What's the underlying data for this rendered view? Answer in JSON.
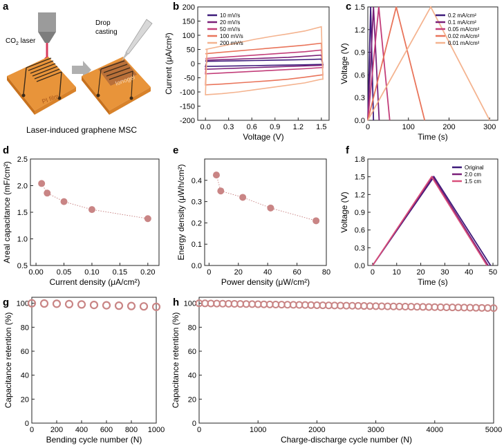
{
  "panel_a": {
    "letter": "a",
    "co2_main": "CO",
    "co2_sub": "2",
    "co2_tail": " laser",
    "drop": "Drop",
    "casting": "casting",
    "film": "PI film",
    "gel": "Ionogel",
    "caption": "Laser-induced graphene MSC"
  },
  "chart_data": [
    {
      "panel": "b",
      "type": "line",
      "xlabel": "Voltage (V)",
      "ylabel": "Current (μA/cm²)",
      "xlim": [
        -0.1,
        1.6
      ],
      "ylim": [
        -200,
        200
      ],
      "xticks": [
        "0.0",
        "0.3",
        "0.6",
        "0.9",
        "1.2",
        "1.5"
      ],
      "xtick_values": [
        0,
        0.3,
        0.6,
        0.9,
        1.2,
        1.5
      ],
      "yticks": [
        "-200",
        "-150",
        "-100",
        "-50",
        "0",
        "50",
        "100",
        "150",
        "200"
      ],
      "ytick_values": [
        -200,
        -150,
        -100,
        -50,
        0,
        50,
        100,
        150,
        200
      ],
      "legend_position": "top-left",
      "series": [
        {
          "name": "10 mV/s",
          "color": "#3d1a7a",
          "top": [
            8,
            9,
            10,
            11,
            12,
            13,
            14,
            16
          ],
          "bottom": [
            -10,
            -9,
            -8,
            -7,
            -6,
            -5,
            -4,
            -3
          ]
        },
        {
          "name": "20 mV/s",
          "color": "#7a1f78",
          "top": [
            12,
            14,
            16,
            18,
            20,
            22,
            26,
            30
          ],
          "bottom": [
            -20,
            -18,
            -16,
            -14,
            -12,
            -10,
            -8,
            -6
          ]
        },
        {
          "name": "50 mV/s",
          "color": "#c23d79",
          "top": [
            18,
            22,
            26,
            30,
            34,
            38,
            42,
            48
          ],
          "bottom": [
            -36,
            -33,
            -30,
            -27,
            -24,
            -21,
            -18,
            -14
          ]
        },
        {
          "name": "100 mV/s",
          "color": "#e9745a",
          "top": [
            35,
            40,
            45,
            50,
            55,
            60,
            65,
            72
          ],
          "bottom": [
            -75,
            -72,
            -68,
            -64,
            -60,
            -55,
            -48,
            -40
          ]
        },
        {
          "name": "200 mV/s",
          "color": "#f4b38f",
          "top": [
            50,
            62,
            74,
            86,
            96,
            105,
            115,
            130
          ],
          "bottom": [
            -110,
            -106,
            -100,
            -92,
            -84,
            -76,
            -68,
            -55
          ]
        }
      ]
    },
    {
      "panel": "c",
      "type": "line",
      "xlabel": "Time (s)",
      "ylabel": "Voltage (V)",
      "xlim": [
        0,
        320
      ],
      "ylim": [
        0,
        1.5
      ],
      "xticks": [
        "0",
        "100",
        "200",
        "300"
      ],
      "xtick_values": [
        0,
        100,
        200,
        300
      ],
      "yticks": [
        "0.0",
        "0.3",
        "0.6",
        "0.9",
        "1.2",
        "1.5"
      ],
      "ytick_values": [
        0,
        0.3,
        0.6,
        0.9,
        1.2,
        1.5
      ],
      "legend_position": "top-right",
      "series": [
        {
          "name": "0.2 mA/cm²",
          "color": "#3d1a7a",
          "x": [
            0,
            7,
            14
          ],
          "y": [
            0,
            1.5,
            0
          ]
        },
        {
          "name": "0.1 mA/cm²",
          "color": "#7a1f78",
          "x": [
            0,
            14,
            28
          ],
          "y": [
            0,
            1.5,
            0
          ]
        },
        {
          "name": "0.05 mA/cm²",
          "color": "#c23d79",
          "x": [
            0,
            27,
            54
          ],
          "y": [
            0,
            1.5,
            0
          ]
        },
        {
          "name": "0.02 mA/cm²",
          "color": "#e9745a",
          "x": [
            0,
            70,
            140
          ],
          "y": [
            0,
            1.5,
            0
          ]
        },
        {
          "name": "0.01 mA/cm²",
          "color": "#f4b38f",
          "x": [
            0,
            155,
            300
          ],
          "y": [
            0,
            1.5,
            0
          ]
        }
      ]
    },
    {
      "panel": "d",
      "type": "scatter",
      "xlabel": "Current density (μA/cm²)",
      "ylabel": "Areal capacitance (mF/cm²)",
      "xlim": [
        -0.01,
        0.22
      ],
      "ylim": [
        0.5,
        2.5
      ],
      "xticks": [
        "0.00",
        "0.05",
        "0.10",
        "0.15",
        "0.20"
      ],
      "xtick_values": [
        0,
        0.05,
        0.1,
        0.15,
        0.2
      ],
      "yticks": [
        "0.5",
        "1.0",
        "1.5",
        "2.0",
        "2.5"
      ],
      "ytick_values": [
        0.5,
        1.0,
        1.5,
        2.0,
        2.5
      ],
      "x": [
        0.01,
        0.02,
        0.05,
        0.1,
        0.2
      ],
      "y": [
        2.04,
        1.86,
        1.7,
        1.55,
        1.38
      ]
    },
    {
      "panel": "e",
      "type": "scatter",
      "xlabel": "Power density (μW/cm²)",
      "ylabel": "Energy density (μWh/cm²)",
      "xlim": [
        -3,
        80
      ],
      "ylim": [
        0.0,
        0.5
      ],
      "xticks": [
        "0",
        "20",
        "40",
        "60",
        "80"
      ],
      "xtick_values": [
        0,
        20,
        40,
        60,
        80
      ],
      "yticks": [
        "0.0",
        "0.1",
        "0.2",
        "0.3",
        "0.4"
      ],
      "ytick_values": [
        0.0,
        0.1,
        0.2,
        0.3,
        0.4
      ],
      "x": [
        5,
        8,
        23,
        42,
        73
      ],
      "y": [
        0.425,
        0.35,
        0.32,
        0.27,
        0.21
      ]
    },
    {
      "panel": "f",
      "type": "line",
      "xlabel": "Time (s)",
      "ylabel": "Voltage (V)",
      "xlim": [
        -2,
        52
      ],
      "ylim": [
        0,
        1.8
      ],
      "xticks": [
        "0",
        "10",
        "20",
        "30",
        "40",
        "50"
      ],
      "xtick_values": [
        0,
        10,
        20,
        30,
        40,
        50
      ],
      "yticks": [
        "0.0",
        "0.3",
        "0.6",
        "0.9",
        "1.2",
        "1.5",
        "1.8"
      ],
      "ytick_values": [
        0,
        0.3,
        0.6,
        0.9,
        1.2,
        1.5,
        1.8
      ],
      "legend_position": "top-right",
      "series": [
        {
          "name": "Original",
          "color": "#3d1a7a",
          "x": [
            0,
            25.5,
            49
          ],
          "y": [
            0,
            1.5,
            0
          ]
        },
        {
          "name": "2.0 cm",
          "color": "#7a1f78",
          "x": [
            0,
            25,
            48
          ],
          "y": [
            0,
            1.5,
            0
          ]
        },
        {
          "name": "1.5 cm",
          "color": "#d94f7a",
          "x": [
            0,
            24.5,
            47.5
          ],
          "y": [
            0,
            1.5,
            0
          ]
        }
      ]
    },
    {
      "panel": "g",
      "type": "scatter",
      "xlabel": "Bending cycle number (N)",
      "ylabel": "Capacitance retention (%)",
      "xlim": [
        0,
        1000
      ],
      "ylim": [
        0,
        105
      ],
      "xticks": [
        "0",
        "200",
        "400",
        "600",
        "800",
        "1000"
      ],
      "xtick_values": [
        0,
        200,
        400,
        600,
        800,
        1000
      ],
      "yticks": [
        "0",
        "20",
        "40",
        "60",
        "80",
        "100"
      ],
      "ytick_values": [
        0,
        20,
        40,
        60,
        80,
        100
      ],
      "x": [
        0,
        100,
        200,
        300,
        400,
        500,
        600,
        700,
        800,
        900,
        1000
      ],
      "y": [
        100,
        99.8,
        99.6,
        99.3,
        99,
        98.6,
        98.3,
        98,
        97.7,
        97.4,
        97
      ]
    },
    {
      "panel": "h",
      "type": "scatter",
      "xlabel": "Charge-discharge cycle number (N)",
      "ylabel": "Capacitance retention (%)",
      "xlim": [
        0,
        5000
      ],
      "ylim": [
        0,
        105
      ],
      "xticks": [
        "0",
        "1000",
        "2000",
        "3000",
        "4000",
        "5000"
      ],
      "xtick_values": [
        0,
        1000,
        2000,
        3000,
        4000,
        5000
      ],
      "yticks": [
        "0",
        "20",
        "40",
        "60",
        "80",
        "100"
      ],
      "ytick_values": [
        0,
        20,
        40,
        60,
        80,
        100
      ],
      "x_start": 0,
      "x_step": 100,
      "n_points": 51,
      "y_start": 100,
      "y_end": 96
    }
  ],
  "colors": {
    "marker": "#c98585",
    "axis": "#222222",
    "orange": "#e8943a",
    "grey": "#8c8c8c"
  }
}
